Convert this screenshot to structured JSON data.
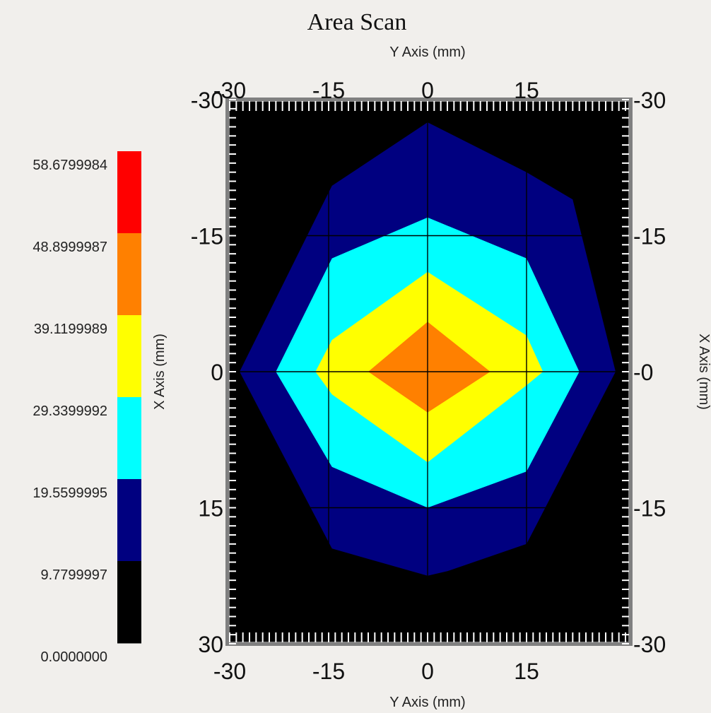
{
  "chart_data": {
    "type": "heatmap",
    "title": "Area Scan",
    "xlabel": "Y Axis (mm)",
    "ylabel": "X Axis (mm)",
    "x_range": [
      -30,
      30
    ],
    "y_range": [
      -30,
      30
    ],
    "x_ticks": [
      "-30",
      "-15",
      "0",
      "15"
    ],
    "y_ticks": [
      "-30",
      "-15",
      "0",
      "15",
      "30"
    ],
    "y_ticks_right": [
      "-30",
      "-15",
      "-0",
      "-15",
      "-30"
    ],
    "grid": true,
    "background_color": "#000000",
    "colorbar": {
      "labels": [
        "58.6799984",
        "48.8999987",
        "39.1199989",
        "29.3399992",
        "19.5599995",
        "9.7799997",
        "0.0000000"
      ],
      "colors": [
        "#ff0000",
        "#ff8000",
        "#ffff00",
        "#00ffff",
        "#000080",
        "#000000"
      ]
    },
    "contours": [
      {
        "level_min": 9.7799997,
        "color": "#000080",
        "points": [
          [
            -28.5,
            0
          ],
          [
            -14.5,
            -20.5
          ],
          [
            0,
            -27.5
          ],
          [
            15,
            -22
          ],
          [
            22,
            -19
          ],
          [
            28.5,
            0
          ],
          [
            15,
            19
          ],
          [
            3,
            22
          ],
          [
            0,
            22.5
          ],
          [
            -14.5,
            19.5
          ]
        ]
      },
      {
        "level_min": 19.5599995,
        "color": "#00ffff",
        "points": [
          [
            -23,
            0
          ],
          [
            -14.5,
            -12.5
          ],
          [
            0,
            -17
          ],
          [
            15,
            -12.5
          ],
          [
            23,
            0
          ],
          [
            15,
            11
          ],
          [
            0,
            15
          ],
          [
            -14.5,
            10.5
          ]
        ]
      },
      {
        "level_min": 29.3399992,
        "color": "#ffff00",
        "points": [
          [
            -17,
            0
          ],
          [
            -14.5,
            -3.5
          ],
          [
            0,
            -11
          ],
          [
            15,
            -4
          ],
          [
            17.5,
            0
          ],
          [
            15,
            1.5
          ],
          [
            0,
            10
          ],
          [
            -14.5,
            2.5
          ]
        ]
      },
      {
        "level_min": 39.1199989,
        "color": "#ff8000",
        "points": [
          [
            -9,
            0
          ],
          [
            0,
            -5.5
          ],
          [
            9.5,
            0
          ],
          [
            0,
            4.5
          ]
        ]
      }
    ]
  }
}
